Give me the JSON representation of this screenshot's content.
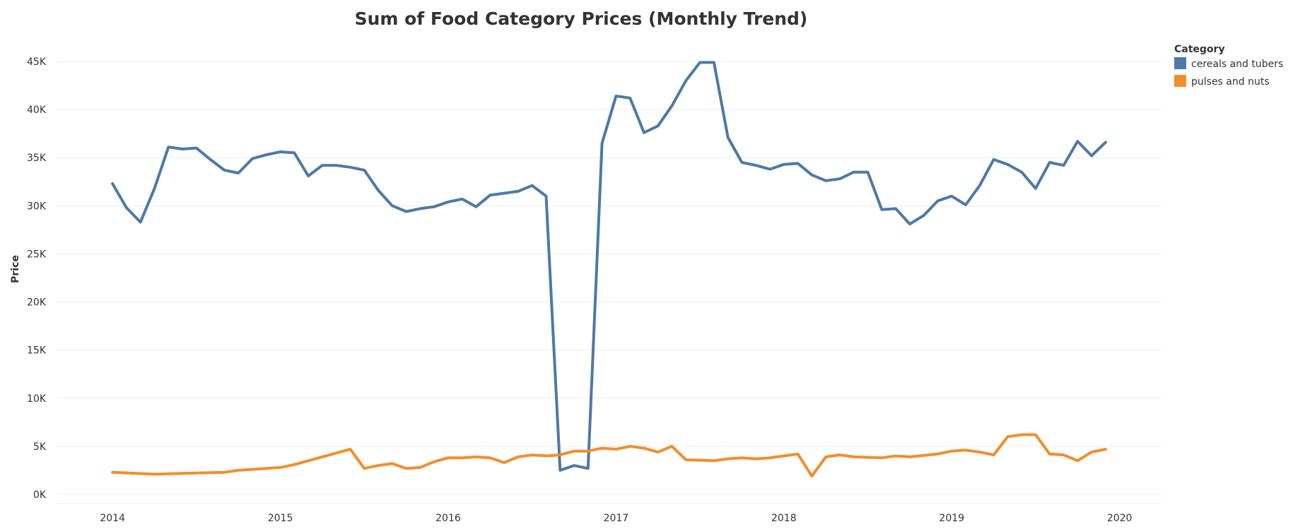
{
  "chart_data": {
    "type": "line",
    "title": "Sum of Food Category Prices (Monthly Trend)",
    "xlabel": "",
    "ylabel": "Price",
    "x_ticks": [
      "2014",
      "2015",
      "2016",
      "2017",
      "2018",
      "2019",
      "2020"
    ],
    "y_ticks": [
      "0K",
      "5K",
      "10K",
      "15K",
      "20K",
      "25K",
      "30K",
      "35K",
      "40K",
      "45K"
    ],
    "ylim": [
      0,
      45000
    ],
    "xlim": [
      "2013-09",
      "2020-04"
    ],
    "grid": true,
    "legend": {
      "title": "Category",
      "position": "top-right"
    },
    "series": [
      {
        "name": "cereals and tubers",
        "color": "#4e79a7",
        "points": [
          [
            "2014-01",
            32300
          ],
          [
            "2014-02",
            29800
          ],
          [
            "2014-03",
            28300
          ],
          [
            "2014-04",
            31800
          ],
          [
            "2014-05",
            36100
          ],
          [
            "2014-06",
            35900
          ],
          [
            "2014-07",
            36000
          ],
          [
            "2014-08",
            34800
          ],
          [
            "2014-09",
            33700
          ],
          [
            "2014-10",
            33400
          ],
          [
            "2014-11",
            34900
          ],
          [
            "2014-12",
            35300
          ],
          [
            "2015-01",
            35600
          ],
          [
            "2015-02",
            35500
          ],
          [
            "2015-03",
            33100
          ],
          [
            "2015-04",
            34200
          ],
          [
            "2015-05",
            34200
          ],
          [
            "2015-06",
            34000
          ],
          [
            "2015-07",
            33700
          ],
          [
            "2015-08",
            31600
          ],
          [
            "2015-09",
            30000
          ],
          [
            "2015-10",
            29400
          ],
          [
            "2015-11",
            29700
          ],
          [
            "2015-12",
            29900
          ],
          [
            "2016-01",
            30400
          ],
          [
            "2016-02",
            30700
          ],
          [
            "2016-03",
            29900
          ],
          [
            "2016-04",
            31100
          ],
          [
            "2016-05",
            31300
          ],
          [
            "2016-06",
            31500
          ],
          [
            "2016-07",
            32100
          ],
          [
            "2016-08",
            31000
          ],
          [
            "2016-09",
            2500
          ],
          [
            "2016-10",
            3000
          ],
          [
            "2016-11",
            2700
          ],
          [
            "2016-12",
            36500
          ],
          [
            "2017-01",
            41400
          ],
          [
            "2017-02",
            41200
          ],
          [
            "2017-03",
            37600
          ],
          [
            "2017-04",
            38300
          ],
          [
            "2017-05",
            40400
          ],
          [
            "2017-06",
            43000
          ],
          [
            "2017-07",
            44900
          ],
          [
            "2017-08",
            44900
          ],
          [
            "2017-09",
            37100
          ],
          [
            "2017-10",
            34500
          ],
          [
            "2017-11",
            34200
          ],
          [
            "2017-12",
            33800
          ],
          [
            "2018-01",
            34300
          ],
          [
            "2018-02",
            34400
          ],
          [
            "2018-03",
            33200
          ],
          [
            "2018-04",
            32600
          ],
          [
            "2018-05",
            32800
          ],
          [
            "2018-06",
            33500
          ],
          [
            "2018-07",
            33500
          ],
          [
            "2018-08",
            29600
          ],
          [
            "2018-09",
            29700
          ],
          [
            "2018-10",
            28100
          ],
          [
            "2018-11",
            29000
          ],
          [
            "2018-12",
            30500
          ],
          [
            "2019-01",
            31000
          ],
          [
            "2019-02",
            30100
          ],
          [
            "2019-03",
            32100
          ],
          [
            "2019-04",
            34800
          ],
          [
            "2019-05",
            34300
          ],
          [
            "2019-06",
            33500
          ],
          [
            "2019-07",
            31800
          ],
          [
            "2019-08",
            34500
          ],
          [
            "2019-09",
            34200
          ],
          [
            "2019-10",
            36700
          ],
          [
            "2019-11",
            35200
          ],
          [
            "2019-12",
            36600
          ]
        ]
      },
      {
        "name": "pulses and nuts",
        "color": "#f28e2b",
        "points": [
          [
            "2014-01",
            2300
          ],
          [
            "2014-04",
            2100
          ],
          [
            "2014-09",
            2300
          ],
          [
            "2014-10",
            2500
          ],
          [
            "2014-12",
            2700
          ],
          [
            "2015-01",
            2800
          ],
          [
            "2015-02",
            3100
          ],
          [
            "2015-06",
            4700
          ],
          [
            "2015-07",
            2700
          ],
          [
            "2015-08",
            3000
          ],
          [
            "2015-09",
            3200
          ],
          [
            "2015-10",
            2700
          ],
          [
            "2015-11",
            2800
          ],
          [
            "2015-12",
            3400
          ],
          [
            "2016-01",
            3800
          ],
          [
            "2016-02",
            3800
          ],
          [
            "2016-03",
            3900
          ],
          [
            "2016-04",
            3800
          ],
          [
            "2016-05",
            3300
          ],
          [
            "2016-06",
            3900
          ],
          [
            "2016-07",
            4100
          ],
          [
            "2016-08",
            4000
          ],
          [
            "2016-09",
            4100
          ],
          [
            "2016-10",
            4500
          ],
          [
            "2016-11",
            4500
          ],
          [
            "2016-12",
            4800
          ],
          [
            "2017-01",
            4700
          ],
          [
            "2017-02",
            5000
          ],
          [
            "2017-03",
            4800
          ],
          [
            "2017-04",
            4400
          ],
          [
            "2017-05",
            5000
          ],
          [
            "2017-06",
            3600
          ],
          [
            "2017-08",
            3500
          ],
          [
            "2017-09",
            3700
          ],
          [
            "2017-10",
            3800
          ],
          [
            "2017-11",
            3700
          ],
          [
            "2017-12",
            3800
          ],
          [
            "2018-01",
            4000
          ],
          [
            "2018-02",
            4200
          ],
          [
            "2018-03",
            1900
          ],
          [
            "2018-04",
            3900
          ],
          [
            "2018-05",
            4100
          ],
          [
            "2018-06",
            3900
          ],
          [
            "2018-08",
            3800
          ],
          [
            "2018-09",
            4000
          ],
          [
            "2018-10",
            3900
          ],
          [
            "2018-12",
            4200
          ],
          [
            "2019-01",
            4500
          ],
          [
            "2019-02",
            4600
          ],
          [
            "2019-03",
            4400
          ],
          [
            "2019-04",
            4100
          ],
          [
            "2019-05",
            6000
          ],
          [
            "2019-06",
            6200
          ],
          [
            "2019-07",
            6200
          ],
          [
            "2019-08",
            4200
          ],
          [
            "2019-09",
            4100
          ],
          [
            "2019-10",
            3500
          ],
          [
            "2019-11",
            4400
          ],
          [
            "2019-12",
            4700
          ]
        ]
      }
    ]
  }
}
